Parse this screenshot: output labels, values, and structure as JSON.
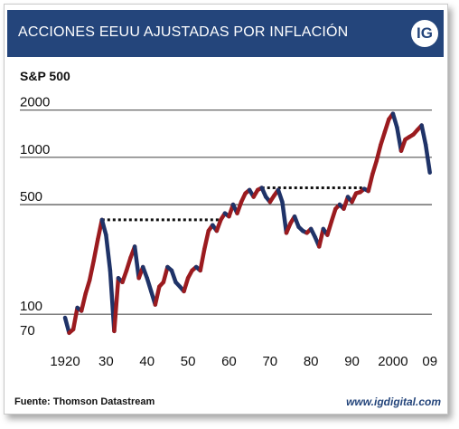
{
  "header": {
    "title": "ACCIONES EEUU AJUSTADAS POR INFLACIÓN",
    "logo_text": "IG"
  },
  "footer": {
    "source": "Fuente: Thomson Datastream",
    "website": "www.igdigital.com"
  },
  "colors": {
    "header_bg": "#24457b",
    "rising": "#9b1b1f",
    "falling": "#1f3368",
    "grid": "#000000"
  },
  "chart_data": {
    "type": "line",
    "title": "",
    "series_label": "S&P 500",
    "xlabel": "",
    "ylabel": "",
    "yscale": "log",
    "ylim": [
      70,
      2400
    ],
    "xlim": [
      1920,
      2009.5
    ],
    "y_ticks": [
      70,
      100,
      500,
      1000,
      2000
    ],
    "y_tick_labels": [
      "70",
      "100",
      "500",
      "1000",
      "2000"
    ],
    "x_ticks": [
      1920,
      1930,
      1940,
      1950,
      1960,
      1970,
      1980,
      1990,
      2000,
      2009
    ],
    "x_tick_labels": [
      "1920",
      "30",
      "40",
      "50",
      "60",
      "70",
      "80",
      "90",
      "2000",
      "09"
    ],
    "grid": "horizontal",
    "series": [
      {
        "values": [
          [
            1920,
            95
          ],
          [
            1921,
            76
          ],
          [
            1922,
            80
          ],
          [
            1923,
            110
          ],
          [
            1924,
            105
          ],
          [
            1925,
            135
          ],
          [
            1926,
            165
          ],
          [
            1927,
            220
          ],
          [
            1928,
            300
          ],
          [
            1929,
            400
          ],
          [
            1930,
            320
          ],
          [
            1931,
            190
          ],
          [
            1932,
            78
          ],
          [
            1933,
            170
          ],
          [
            1934,
            160
          ],
          [
            1935,
            190
          ],
          [
            1936,
            230
          ],
          [
            1937,
            270
          ],
          [
            1938,
            170
          ],
          [
            1939,
            200
          ],
          [
            1940,
            170
          ],
          [
            1941,
            140
          ],
          [
            1942,
            115
          ],
          [
            1943,
            150
          ],
          [
            1944,
            160
          ],
          [
            1945,
            200
          ],
          [
            1946,
            190
          ],
          [
            1947,
            160
          ],
          [
            1948,
            150
          ],
          [
            1949,
            140
          ],
          [
            1950,
            170
          ],
          [
            1951,
            190
          ],
          [
            1952,
            200
          ],
          [
            1953,
            190
          ],
          [
            1954,
            260
          ],
          [
            1955,
            340
          ],
          [
            1956,
            370
          ],
          [
            1957,
            340
          ],
          [
            1958,
            400
          ],
          [
            1959,
            440
          ],
          [
            1960,
            420
          ],
          [
            1961,
            500
          ],
          [
            1962,
            440
          ],
          [
            1963,
            520
          ],
          [
            1964,
            590
          ],
          [
            1965,
            620
          ],
          [
            1966,
            560
          ],
          [
            1967,
            620
          ],
          [
            1968,
            640
          ],
          [
            1969,
            560
          ],
          [
            1970,
            520
          ],
          [
            1971,
            570
          ],
          [
            1972,
            620
          ],
          [
            1973,
            520
          ],
          [
            1974,
            330
          ],
          [
            1975,
            380
          ],
          [
            1976,
            420
          ],
          [
            1977,
            360
          ],
          [
            1978,
            340
          ],
          [
            1979,
            330
          ],
          [
            1980,
            350
          ],
          [
            1981,
            310
          ],
          [
            1982,
            270
          ],
          [
            1983,
            350
          ],
          [
            1984,
            320
          ],
          [
            1985,
            390
          ],
          [
            1986,
            470
          ],
          [
            1987,
            500
          ],
          [
            1988,
            470
          ],
          [
            1989,
            560
          ],
          [
            1990,
            520
          ],
          [
            1991,
            590
          ],
          [
            1992,
            600
          ],
          [
            1993,
            630
          ],
          [
            1994,
            610
          ],
          [
            1995,
            780
          ],
          [
            1996,
            950
          ],
          [
            1997,
            1200
          ],
          [
            1998,
            1450
          ],
          [
            1999,
            1750
          ],
          [
            2000,
            1900
          ],
          [
            2001,
            1550
          ],
          [
            2002,
            1100
          ],
          [
            2003,
            1300
          ],
          [
            2004,
            1350
          ],
          [
            2005,
            1400
          ],
          [
            2006,
            1500
          ],
          [
            2007,
            1600
          ],
          [
            2008,
            1200
          ],
          [
            2009,
            800
          ]
        ]
      }
    ],
    "reference_lines": [
      {
        "x_start": 1929,
        "x_end": 1958,
        "y": 400,
        "style": "dotted"
      },
      {
        "x_start": 1968,
        "x_end": 1993,
        "y": 640,
        "style": "dotted"
      }
    ],
    "color_rule": "segments red when rising, dark blue when falling"
  }
}
